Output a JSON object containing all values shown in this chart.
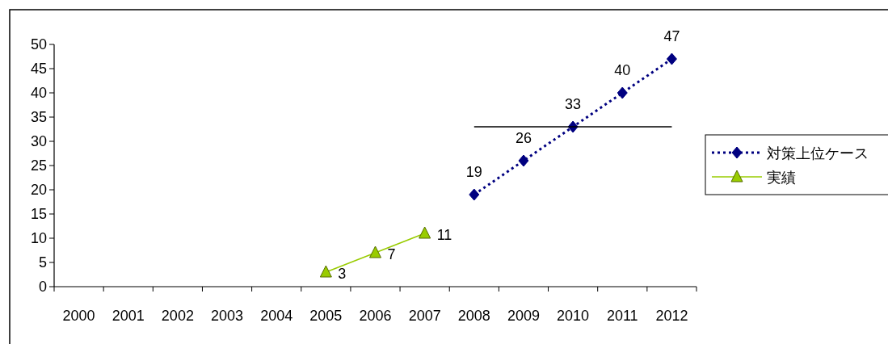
{
  "chart_data": {
    "type": "line",
    "categories": [
      "2000",
      "2001",
      "2002",
      "2003",
      "2004",
      "2005",
      "2006",
      "2007",
      "2008",
      "2009",
      "2010",
      "2011",
      "2012"
    ],
    "series": [
      {
        "name": "対策上位ケース",
        "color": "#000080",
        "marker": "diamond",
        "line_style": "dotted",
        "data_labels": true,
        "values": [
          null,
          null,
          null,
          null,
          null,
          null,
          null,
          null,
          19,
          26,
          33,
          40,
          47
        ]
      },
      {
        "name": "実績",
        "color": "#99cc00",
        "marker": "triangle",
        "line_style": "solid",
        "data_labels": true,
        "values": [
          null,
          null,
          null,
          null,
          null,
          3,
          7,
          11,
          null,
          null,
          null,
          null,
          null
        ]
      },
      {
        "color": "#000000",
        "marker": "none",
        "line_style": "solid",
        "values": [
          null,
          null,
          null,
          null,
          null,
          null,
          null,
          null,
          33,
          33,
          33,
          33,
          33
        ]
      }
    ],
    "ylim": [
      0,
      50
    ],
    "yticks": [
      0,
      5,
      10,
      15,
      20,
      25,
      30,
      35,
      40,
      45,
      50
    ],
    "grid": false,
    "legend": "right"
  }
}
